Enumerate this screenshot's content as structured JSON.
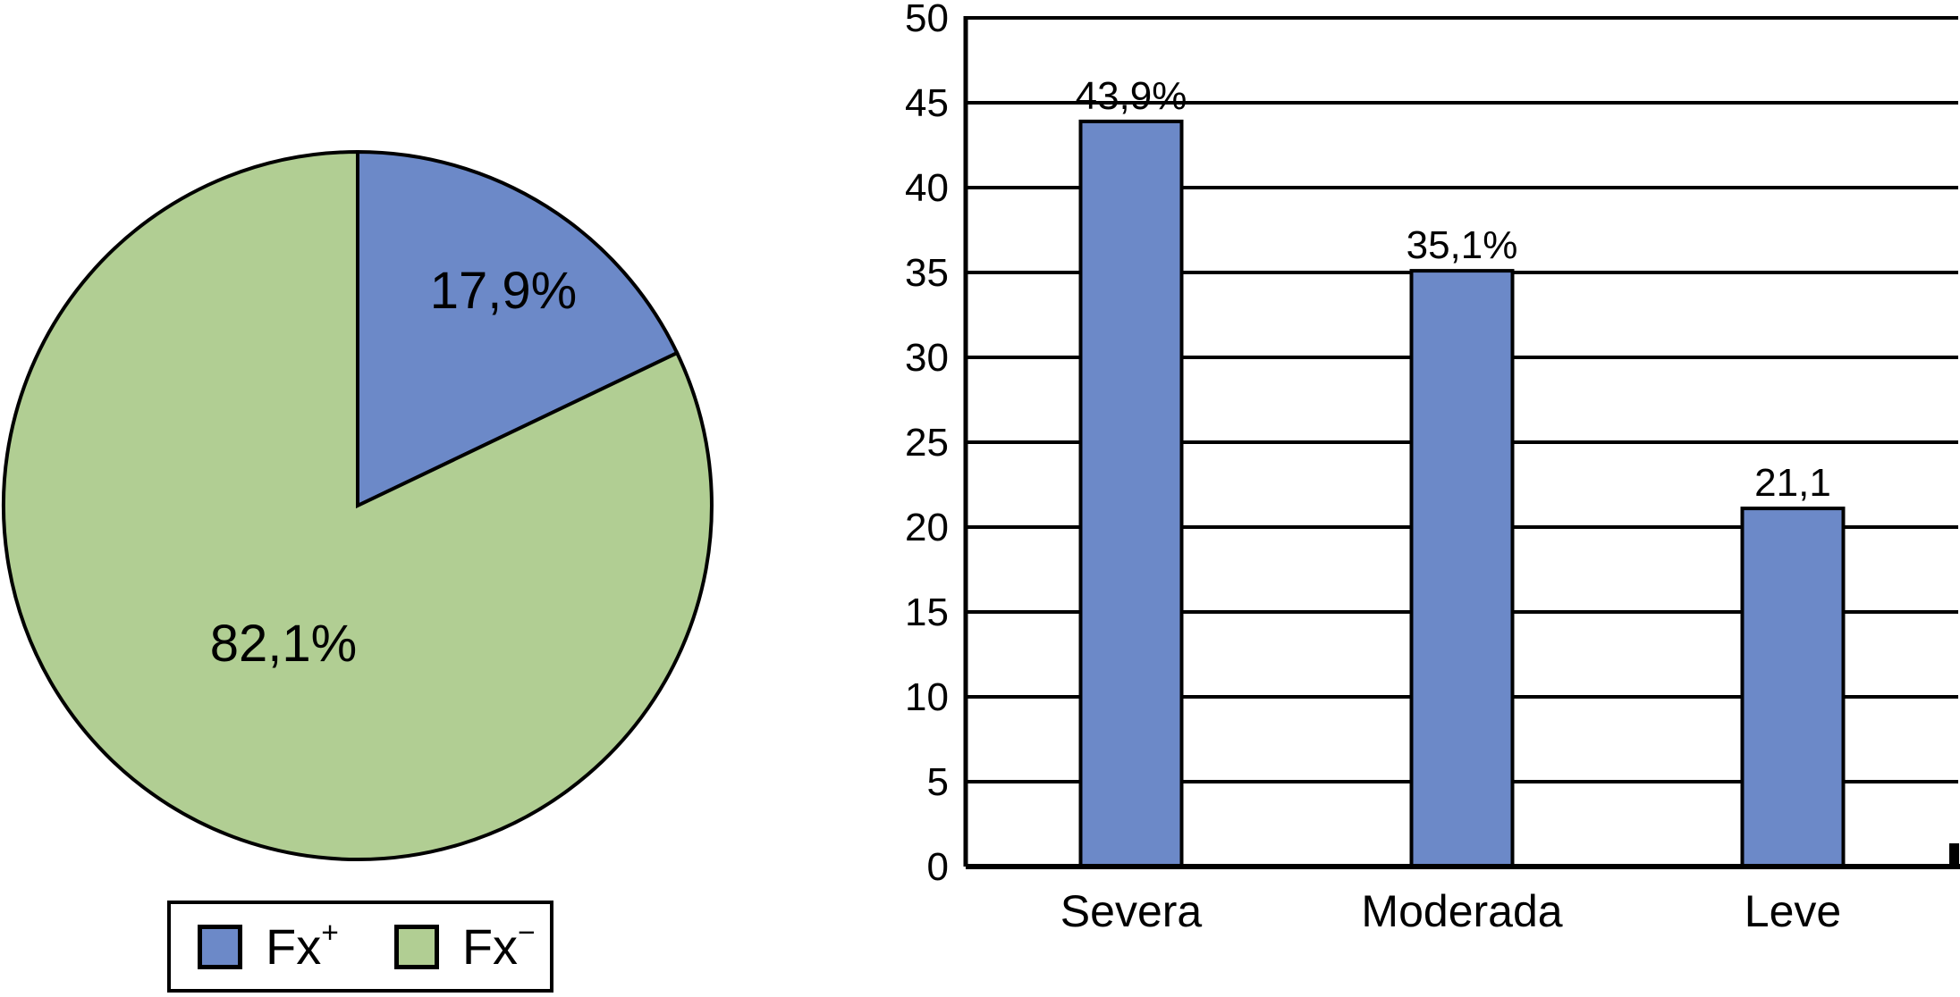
{
  "page": {
    "background": "#FFFFFF"
  },
  "colors": {
    "series_blue": "#6C89C8",
    "series_green": "#B1CE93",
    "outline": "#000000"
  },
  "pie_chart": {
    "legend": [
      {
        "base": "Fx",
        "sup": "+"
      },
      {
        "base": "Fx",
        "sup": "−"
      }
    ]
  },
  "chart_data": [
    {
      "type": "pie",
      "labels": [
        "Fx+",
        "Fx−"
      ],
      "values": [
        17.9,
        82.1
      ],
      "slice_labels": [
        "17,9%",
        "82,1%"
      ],
      "colors": [
        "#6C89C8",
        "#B1CE93"
      ],
      "outline_color": "#000000",
      "start_angle_deg": 0,
      "direction": "clockwise",
      "legend_position": "bottom"
    },
    {
      "type": "bar",
      "categories": [
        "Severa",
        "Moderada",
        "Leve"
      ],
      "values": [
        43.9,
        35.1,
        21.1
      ],
      "data_labels": [
        "43,9%",
        "35,1%",
        "21,1"
      ],
      "bar_color": "#6C89C8",
      "bar_outline_color": "#000000",
      "ylim": [
        0,
        50
      ],
      "yticks": [
        0,
        5,
        10,
        15,
        20,
        25,
        30,
        35,
        40,
        45,
        50
      ],
      "grid": true,
      "title": "",
      "xlabel": "",
      "ylabel": ""
    }
  ]
}
